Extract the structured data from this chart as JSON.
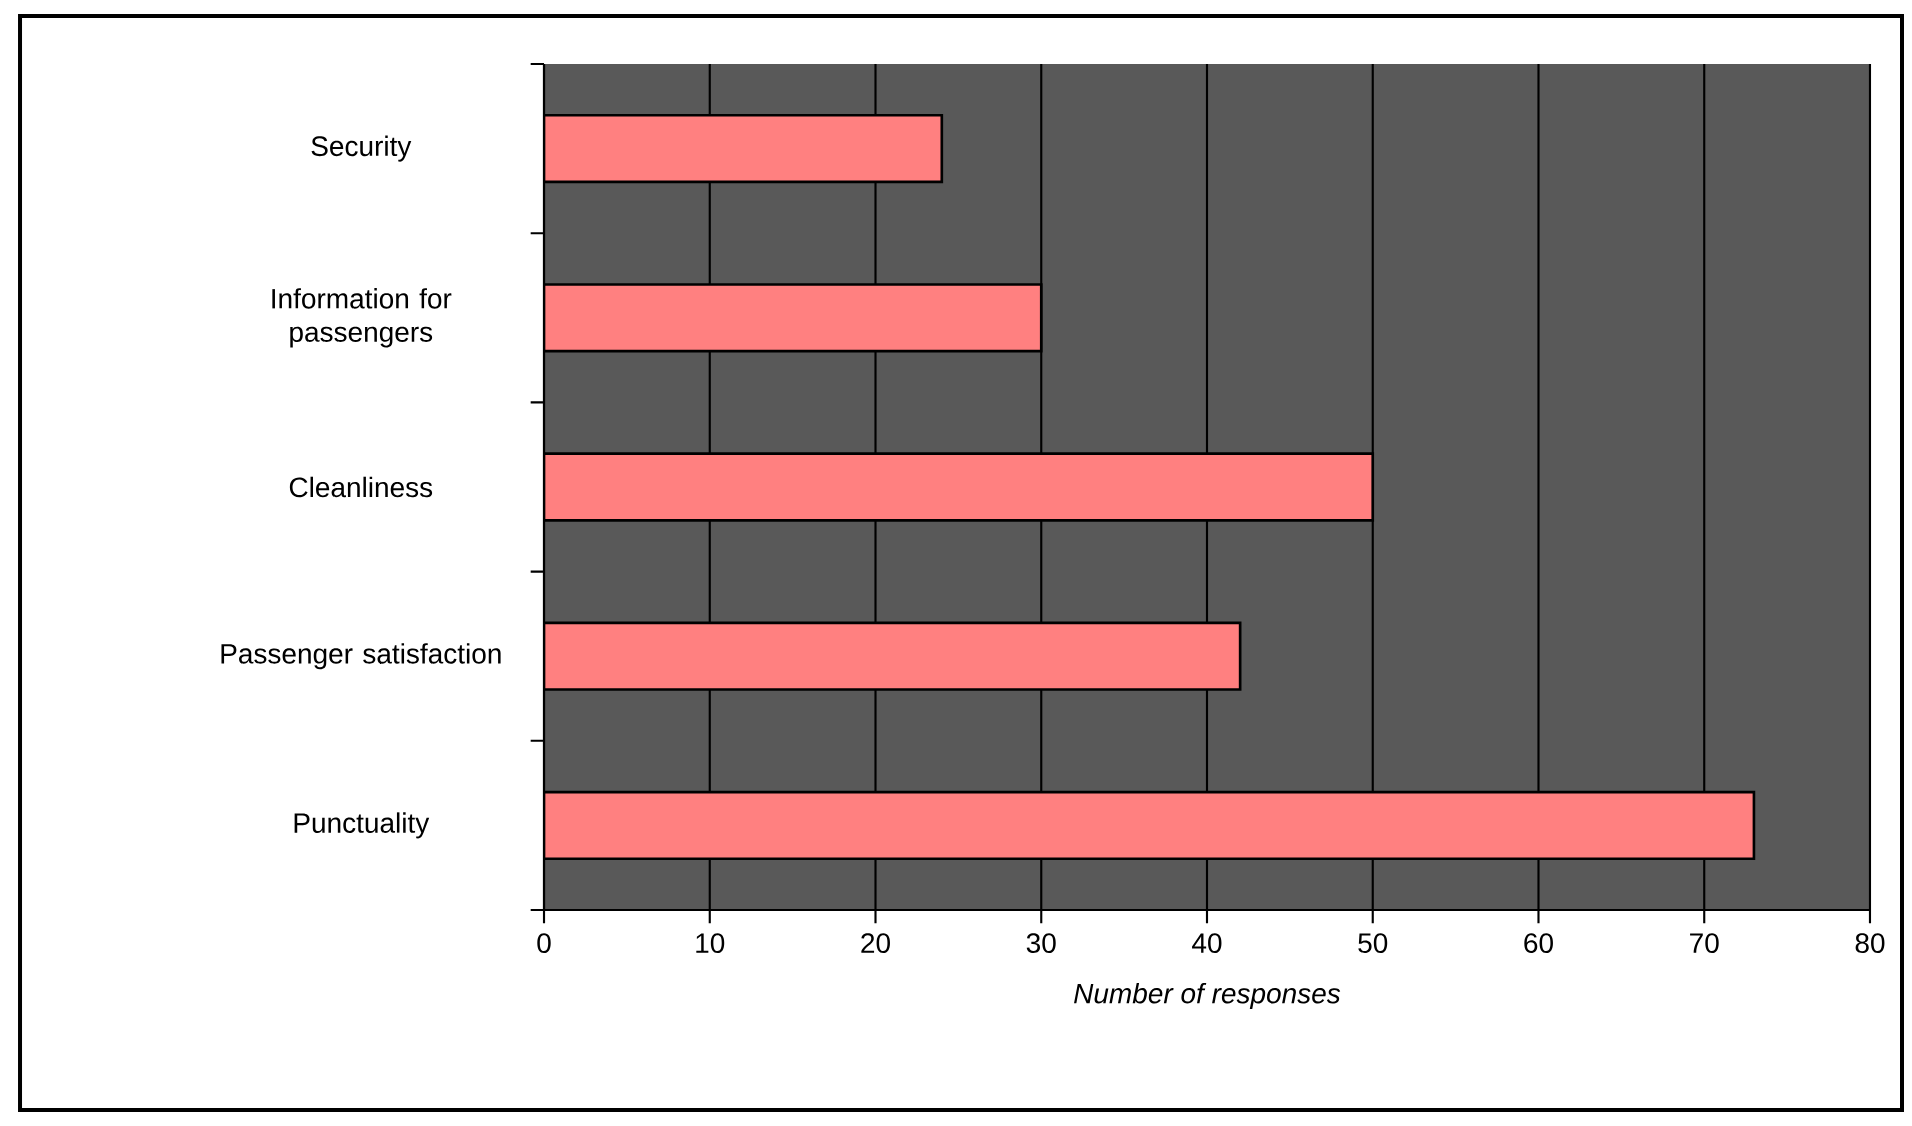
{
  "chart_data": {
    "type": "bar",
    "orientation": "horizontal",
    "xlabel": "*Number of responses*",
    "categories": [
      "Security",
      "Information for passengers",
      "Cleanliness",
      "Passenger satisfaction",
      "Punctuality"
    ],
    "values": [
      24,
      30,
      50,
      42,
      73
    ],
    "color": "#ff8080",
    "xlim": [
      0,
      80
    ],
    "xticks": [
      0,
      10,
      20,
      30,
      40,
      50,
      60,
      70,
      80
    ],
    "grid": "x"
  }
}
